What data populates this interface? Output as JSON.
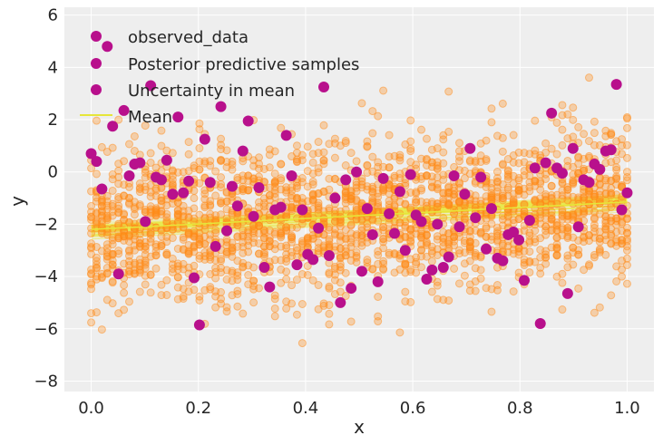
{
  "colors": {
    "background": "#eeeeee",
    "grid": "#ffffff",
    "observed": "#b8108c",
    "posterior": "#ff8c1a",
    "uncertainty": "#e8e84a",
    "mean": "#e6e639"
  },
  "chart_data": {
    "type": "scatter",
    "title": "",
    "xlabel": "x",
    "ylabel": "y",
    "xlim": [
      -0.05,
      1.05
    ],
    "ylim": [
      -8.4,
      6.3
    ],
    "xticks": [
      0.0,
      0.2,
      0.4,
      0.6,
      0.8,
      1.0
    ],
    "xtick_labels": [
      "0.0",
      "0.2",
      "0.4",
      "0.6",
      "0.8",
      "1.0"
    ],
    "yticks": [
      -8,
      -6,
      -4,
      -2,
      0,
      2,
      4,
      6
    ],
    "ytick_labels": [
      "−8",
      "−6",
      "−4",
      "−2",
      "0",
      "2",
      "4",
      "6"
    ],
    "grid": true,
    "legend": {
      "placement": "top-left",
      "entries": [
        "observed_data",
        "Posterior predictive samples",
        "Uncertainty in mean",
        "Mean"
      ]
    },
    "observed_data": {
      "x": [
        0.0,
        0.01,
        0.02,
        0.03,
        0.04,
        0.051,
        0.061,
        0.071,
        0.081,
        0.091,
        0.101,
        0.111,
        0.121,
        0.131,
        0.141,
        0.152,
        0.162,
        0.172,
        0.182,
        0.192,
        0.202,
        0.212,
        0.222,
        0.232,
        0.242,
        0.253,
        0.263,
        0.273,
        0.283,
        0.293,
        0.303,
        0.313,
        0.323,
        0.333,
        0.343,
        0.354,
        0.364,
        0.374,
        0.384,
        0.394,
        0.404,
        0.414,
        0.424,
        0.434,
        0.444,
        0.455,
        0.465,
        0.475,
        0.485,
        0.495,
        0.505,
        0.515,
        0.525,
        0.535,
        0.545,
        0.556,
        0.566,
        0.576,
        0.586,
        0.596,
        0.606,
        0.616,
        0.626,
        0.636,
        0.646,
        0.657,
        0.667,
        0.677,
        0.687,
        0.697,
        0.707,
        0.717,
        0.727,
        0.737,
        0.747,
        0.758,
        0.768,
        0.778,
        0.788,
        0.798,
        0.808,
        0.818,
        0.828,
        0.838,
        0.848,
        0.859,
        0.869,
        0.879,
        0.889,
        0.899,
        0.909,
        0.919,
        0.929,
        0.939,
        0.949,
        0.96,
        0.97,
        0.98,
        0.99,
        1.0
      ],
      "y": [
        0.7,
        0.4,
        -0.65,
        4.8,
        1.75,
        -3.9,
        2.35,
        -0.15,
        0.3,
        0.35,
        -1.9,
        3.3,
        -0.2,
        -0.3,
        0.45,
        -0.85,
        2.1,
        -0.8,
        -0.35,
        -4.05,
        -5.85,
        1.25,
        -0.4,
        -2.85,
        2.5,
        -2.25,
        -0.55,
        -1.3,
        0.8,
        1.95,
        -1.7,
        -0.6,
        -3.65,
        -4.4,
        -1.45,
        -1.35,
        1.4,
        -0.15,
        -3.55,
        -1.45,
        -3.15,
        -3.35,
        -2.15,
        3.25,
        -3.2,
        -1.0,
        -5.0,
        -0.3,
        -4.45,
        0.0,
        -3.8,
        -1.4,
        -2.4,
        -4.2,
        -0.25,
        -1.6,
        -2.35,
        -0.75,
        -3.0,
        -0.1,
        -1.65,
        -1.9,
        -4.1,
        -3.75,
        -2.0,
        -3.65,
        -3.25,
        -0.15,
        -2.1,
        -0.85,
        0.9,
        -1.75,
        -0.2,
        -2.95,
        -1.4,
        -3.3,
        -3.4,
        -2.4,
        -2.3,
        -2.6,
        -4.15,
        -1.85,
        0.15,
        -5.8,
        0.35,
        2.25,
        0.15,
        -0.05,
        -4.65,
        0.9,
        -2.1,
        -0.3,
        -0.4,
        0.3,
        0.1,
        0.8,
        0.85,
        3.35,
        -1.45,
        -0.8
      ]
    },
    "mean_line": {
      "x": [
        0.0,
        1.0
      ],
      "y": [
        -2.2,
        -1.15
      ]
    },
    "uncertainty_band": {
      "x": [
        0.0,
        1.0
      ],
      "y_low": [
        -2.7,
        -1.55
      ],
      "y_high": [
        -1.8,
        -0.75
      ]
    },
    "posterior_predictive_spread": 2.5
  }
}
